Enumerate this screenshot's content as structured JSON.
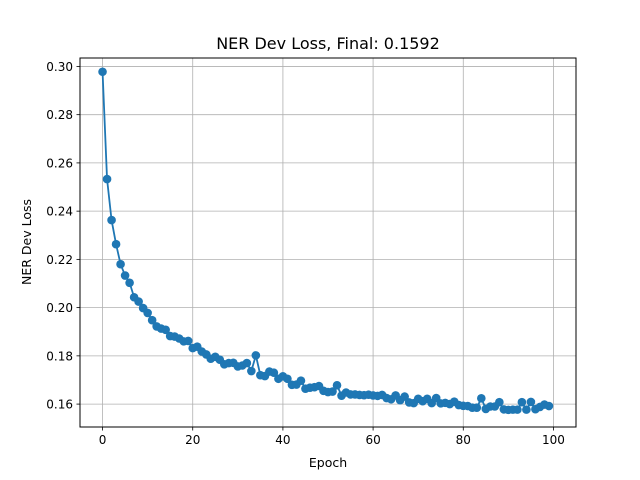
{
  "chart_data": {
    "type": "line",
    "title": "NER Dev Loss, Final: 0.1592",
    "xlabel": "Epoch",
    "ylabel": "NER Dev Loss",
    "xlim": [
      -5,
      105
    ],
    "ylim": [
      0.1505,
      0.3035
    ],
    "x_ticks": [
      0,
      20,
      40,
      60,
      80,
      100
    ],
    "x_tick_labels": [
      "0",
      "20",
      "40",
      "60",
      "80",
      "100"
    ],
    "y_ticks": [
      0.16,
      0.18,
      0.2,
      0.22,
      0.24,
      0.26,
      0.28,
      0.3
    ],
    "y_tick_labels": [
      "0.16",
      "0.18",
      "0.20",
      "0.22",
      "0.24",
      "0.26",
      "0.28",
      "0.30"
    ],
    "grid": true,
    "markers": "circle",
    "colors": {
      "series": "#1f77b4",
      "grid": "#b0b0b0"
    },
    "series": [
      {
        "x": [
          0,
          1,
          2,
          3,
          4,
          5,
          6,
          7,
          8,
          9,
          10,
          11,
          12,
          13,
          14,
          15,
          16,
          17,
          18,
          19,
          20,
          21,
          22,
          23,
          24,
          25,
          26,
          27,
          28,
          29,
          30,
          31,
          32,
          33,
          34,
          35,
          36,
          37,
          38,
          39,
          40,
          41,
          42,
          43,
          44,
          45,
          46,
          47,
          48,
          49,
          50,
          51,
          52,
          53,
          54,
          55,
          56,
          57,
          58,
          59,
          60,
          61,
          62,
          63,
          64,
          65,
          66,
          67,
          68,
          69,
          70,
          71,
          72,
          73,
          74,
          75,
          76,
          77,
          78,
          79,
          80,
          81,
          82,
          83,
          84,
          85,
          86,
          87,
          88,
          89,
          90,
          91,
          92,
          93,
          94,
          95,
          96,
          97,
          98,
          99
        ],
        "values": [
          0.2978,
          0.2533,
          0.2363,
          0.2263,
          0.218,
          0.2133,
          0.2103,
          0.2043,
          0.2025,
          0.1998,
          0.1978,
          0.1948,
          0.1922,
          0.1913,
          0.1908,
          0.1882,
          0.188,
          0.1872,
          0.186,
          0.1862,
          0.1832,
          0.1838,
          0.1818,
          0.1806,
          0.1788,
          0.1796,
          0.1784,
          0.1765,
          0.177,
          0.1771,
          0.1756,
          0.176,
          0.177,
          0.1737,
          0.1802,
          0.172,
          0.1716,
          0.1735,
          0.173,
          0.1705,
          0.1715,
          0.1705,
          0.168,
          0.1681,
          0.1697,
          0.1664,
          0.1668,
          0.167,
          0.1675,
          0.1655,
          0.165,
          0.1652,
          0.1678,
          0.1635,
          0.1648,
          0.164,
          0.164,
          0.1638,
          0.1637,
          0.1639,
          0.1636,
          0.1634,
          0.1638,
          0.1625,
          0.162,
          0.1636,
          0.1616,
          0.1631,
          0.1607,
          0.1604,
          0.1622,
          0.1612,
          0.1622,
          0.1604,
          0.1625,
          0.1603,
          0.1605,
          0.16,
          0.161,
          0.1596,
          0.1593,
          0.1592,
          0.1585,
          0.1585,
          0.1624,
          0.158,
          0.159,
          0.159,
          0.1608,
          0.1578,
          0.1576,
          0.1577,
          0.1577,
          0.1608,
          0.1577,
          0.1609,
          0.1579,
          0.1588,
          0.1598,
          0.1592
        ]
      }
    ]
  }
}
